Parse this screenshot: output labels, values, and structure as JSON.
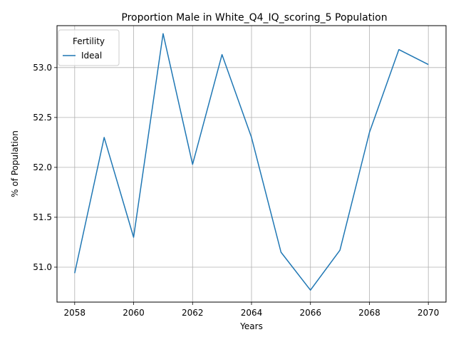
{
  "chart_data": {
    "type": "line",
    "title": "Proportion Male in White_Q4_IQ_scoring_5 Population",
    "xlabel": "Years",
    "ylabel": "% of Population",
    "x": [
      2058,
      2059,
      2060,
      2061,
      2062,
      2063,
      2064,
      2065,
      2066,
      2067,
      2068,
      2069,
      2070
    ],
    "series": [
      {
        "name": "Ideal",
        "color": "#1f77b4",
        "values": [
          50.94,
          52.3,
          51.3,
          53.34,
          52.03,
          53.13,
          52.3,
          51.15,
          50.77,
          51.17,
          52.35,
          53.18,
          53.03
        ]
      }
    ],
    "xlim": [
      2057.4,
      2070.6
    ],
    "ylim": [
      50.65,
      53.42
    ],
    "xticks": [
      2058,
      2060,
      2062,
      2064,
      2066,
      2068,
      2070
    ],
    "yticks": [
      51.0,
      51.5,
      52.0,
      52.5,
      53.0
    ],
    "ytick_labels": [
      "51.0",
      "51.5",
      "52.0",
      "52.5",
      "53.0"
    ],
    "grid": true,
    "legend": {
      "title": "Fertility",
      "position": "top-left"
    }
  }
}
